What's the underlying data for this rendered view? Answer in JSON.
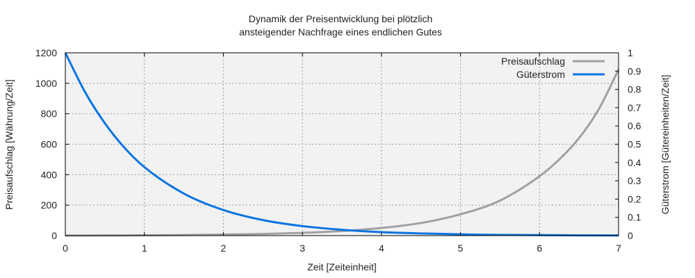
{
  "chart_data": {
    "type": "line",
    "title_line1": "Dynamik der Preisentwicklung bei plötzlich",
    "title_line2": "ansteigender Nachfrage eines endlichen Gutes",
    "xlabel": "Zeit [Zeiteinheit]",
    "ylabel_left": "Preisaufschlag [Währung/Zeit]",
    "ylabel_right": "Güterstrom [Gütereinheiten/Zeit]",
    "xlim": [
      0,
      7
    ],
    "ylim_left": [
      0,
      1200
    ],
    "ylim_right": [
      0,
      1
    ],
    "x_ticks": [
      "0",
      "1",
      "2",
      "3",
      "4",
      "5",
      "6",
      "7"
    ],
    "y_left_ticks": [
      "0",
      "200",
      "400",
      "600",
      "800",
      "1000",
      "1200"
    ],
    "y_right_ticks": [
      "0",
      "0.1",
      "0.2",
      "0.3",
      "0.4",
      "0.5",
      "0.6",
      "0.7",
      "0.8",
      "0.9",
      "1"
    ],
    "grid": true,
    "legend_position": "top-right",
    "colors": {
      "preisaufschlag": "#a0a0a0",
      "gueterstrom": "#0a74e0",
      "plot_bg": "#f2f2f2"
    },
    "series": [
      {
        "name": "Preisaufschlag",
        "axis": "left",
        "x": [
          0,
          0.5,
          1,
          1.5,
          2,
          2.5,
          3,
          3.5,
          4,
          4.5,
          5,
          5.5,
          6,
          6.25,
          6.5,
          6.75,
          7
        ],
        "values": [
          0,
          1,
          2,
          4,
          7,
          11,
          18,
          30,
          50,
          83,
          140,
          230,
          390,
          500,
          640,
          830,
          1090
        ]
      },
      {
        "name": "Güterstrom",
        "axis": "right",
        "x": [
          0,
          0.25,
          0.5,
          0.75,
          1,
          1.5,
          2,
          2.5,
          3,
          3.5,
          4,
          4.5,
          5,
          5.5,
          6,
          6.5,
          7
        ],
        "values": [
          1.0,
          0.785,
          0.615,
          0.48,
          0.375,
          0.23,
          0.14,
          0.085,
          0.052,
          0.032,
          0.019,
          0.012,
          0.007,
          0.004,
          0.003,
          0.0015,
          0.001
        ]
      }
    ]
  }
}
